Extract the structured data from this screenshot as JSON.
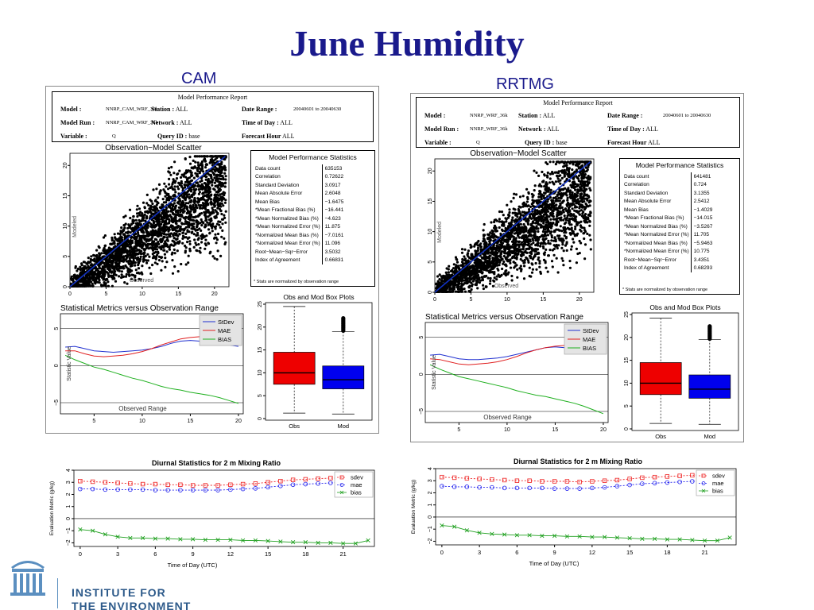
{
  "slide": {
    "title": "June Humidity",
    "left_label": "CAM",
    "right_label": "RRTMG",
    "institute_line1": "INSTITUTE FOR",
    "institute_line2": "THE ENVIRONMENT"
  },
  "reports": [
    {
      "title": "Model Performance Report",
      "model_key": "Model :",
      "model_val": "NNRP_CAM_WRF_36k",
      "run_key": "Model Run :",
      "run_val": "NNRP_CAM_WRF_36k",
      "variable_key": "Variable :",
      "variable_val": "Q",
      "station_key": "Station :",
      "station_val": "ALL",
      "network_key": "Network :",
      "network_val": "ALL",
      "query_key": "Query ID :",
      "query_val": "base",
      "date_key": "Date Range :",
      "date_val": "20040601  to  20040630",
      "tod_key": "Time of Day :",
      "tod_val": "ALL",
      "fh_key": "Forecast Hour",
      "fh_val": "ALL"
    },
    {
      "title": "Model Performance Report",
      "model_key": "Model :",
      "model_val": "NNRP_WRF_36k",
      "run_key": "Model Run :",
      "run_val": "NNRP_WRF_36k",
      "variable_key": "Variable :",
      "variable_val": "Q",
      "station_key": "Station :",
      "station_val": "ALL",
      "network_key": "Network :",
      "network_val": "ALL",
      "query_key": "Query ID :",
      "query_val": "base",
      "date_key": "Date Range :",
      "date_val": "20040601  to  20040630",
      "tod_key": "Time of Day :",
      "tod_val": "ALL",
      "fh_key": "Forecast Hour",
      "fh_val": "ALL"
    }
  ],
  "stats_tables": [
    {
      "title": "Model Performance Statistics",
      "rows": [
        [
          "Data count",
          "635153"
        ],
        [
          "Correlation",
          "0.72622"
        ],
        [
          "Standard Deviation",
          "3.0917"
        ],
        [
          "Mean Absolute Error",
          "2.6048"
        ],
        [
          "Mean Bias",
          "−1.6475"
        ],
        [
          "*Mean Fractional Bias (%)",
          "−16.441"
        ],
        [
          "*Mean Normalized Bias (%)",
          "−4.623"
        ],
        [
          "*Mean Normalized Error (%)",
          "11.875"
        ],
        [
          "*Normalized Mean Bias (%)",
          "−7.0161"
        ],
        [
          "*Normalized Mean Error (%)",
          "11.096"
        ],
        [
          "Root−Mean−Sqr−Error",
          "3.5032"
        ],
        [
          "Index of Agreement",
          "0.66831"
        ]
      ],
      "note": "* Stats are normalized by observation range"
    },
    {
      "title": "Model Performance Statistics",
      "rows": [
        [
          "Data count",
          "641481"
        ],
        [
          "Correlation",
          "0.724"
        ],
        [
          "Standard Deviation",
          "3.1355"
        ],
        [
          "Mean Absolute Error",
          "2.5412"
        ],
        [
          "Mean Bias",
          "−1.4029"
        ],
        [
          "*Mean Fractional Bias (%)",
          "−14.015"
        ],
        [
          "*Mean Normalized Bias (%)",
          "−3.5267"
        ],
        [
          "*Mean Normalized Error (%)",
          "11.705"
        ],
        [
          "*Normalized Mean Bias (%)",
          "−5.9463"
        ],
        [
          "*Normalized Mean Error (%)",
          "10.775"
        ],
        [
          "Root−Mean−Sqr−Error",
          "3.4351"
        ],
        [
          "Index of Agreement",
          "0.68293"
        ]
      ],
      "note": "* Stats are normalized by observation range"
    }
  ],
  "chart_data": [
    {
      "id": "cam-scatter",
      "type": "scatter",
      "title": "Observation−Model Scatter",
      "xlabel": "Observed",
      "ylabel": "Modeled",
      "xlim": [
        0,
        22
      ],
      "ylim": [
        0,
        22
      ],
      "x_ticks": [
        "0",
        "5",
        "10",
        "15",
        "20"
      ],
      "y_ticks": [
        "0",
        "5",
        "10",
        "15",
        "20"
      ],
      "one_to_one_line": true,
      "point_color": "#000000",
      "line_color": "#1030c0"
    },
    {
      "id": "rrtmg-scatter",
      "type": "scatter",
      "title": "Observation−Model Scatter",
      "xlabel": "Observed",
      "ylabel": "Modeled",
      "xlim": [
        0,
        22
      ],
      "ylim": [
        0,
        22
      ],
      "x_ticks": [
        "0",
        "5",
        "10",
        "15",
        "20"
      ],
      "y_ticks": [
        "0",
        "5",
        "10",
        "15",
        "20"
      ],
      "one_to_one_line": true,
      "point_color": "#000000",
      "line_color": "#1030c0"
    },
    {
      "id": "cam-metrics",
      "type": "line",
      "title": "Statistical Metrics versus Observation Range",
      "xlabel": "Observed Range",
      "ylabel": "Statistic Value",
      "xlim": [
        1.5,
        20.5
      ],
      "ylim": [
        -6.5,
        7
      ],
      "x_ticks": [
        "5",
        "10",
        "15",
        "20"
      ],
      "y_ticks": [
        "−5",
        "0",
        "5"
      ],
      "x": [
        2,
        3,
        4,
        5,
        6,
        7,
        8,
        9,
        10,
        11,
        12,
        13,
        14,
        15,
        16,
        17,
        18,
        19,
        20
      ],
      "series": [
        {
          "name": "StDev",
          "color": "#2030d0",
          "values": [
            2.5,
            2.6,
            2.3,
            2.0,
            1.9,
            1.8,
            1.9,
            2.0,
            2.1,
            2.3,
            2.6,
            3.0,
            3.3,
            3.4,
            3.3,
            3.2,
            3.0,
            2.8,
            2.6
          ]
        },
        {
          "name": "MAE",
          "color": "#e02020",
          "values": [
            2.0,
            2.0,
            1.6,
            1.3,
            1.2,
            1.3,
            1.4,
            1.6,
            1.9,
            2.3,
            2.8,
            3.2,
            3.6,
            3.8,
            3.9,
            4.0,
            4.2,
            4.3,
            4.4
          ]
        },
        {
          "name": "BIAS",
          "color": "#20b020",
          "values": [
            1.4,
            0.8,
            0.3,
            -0.2,
            -0.5,
            -0.9,
            -1.3,
            -1.7,
            -2.0,
            -2.4,
            -2.8,
            -3.1,
            -3.3,
            -3.6,
            -3.8,
            -4.0,
            -4.3,
            -4.7,
            -5.1
          ]
        }
      ],
      "legend_position": "top-right"
    },
    {
      "id": "rrtmg-metrics",
      "type": "line",
      "title": "Statistical Metrics versus Observation Range",
      "xlabel": "Observed Range",
      "ylabel": "Statistic Value",
      "xlim": [
        1.5,
        20.5
      ],
      "ylim": [
        -6.5,
        7
      ],
      "x_ticks": [
        "5",
        "10",
        "15",
        "20"
      ],
      "y_ticks": [
        "−5",
        "0",
        "5"
      ],
      "x": [
        2,
        3,
        4,
        5,
        6,
        7,
        8,
        9,
        10,
        11,
        12,
        13,
        14,
        15,
        16,
        17,
        18,
        19,
        20
      ],
      "series": [
        {
          "name": "StDev",
          "color": "#2030d0",
          "values": [
            2.6,
            2.7,
            2.4,
            2.1,
            2.0,
            2.0,
            2.1,
            2.2,
            2.4,
            2.7,
            3.0,
            3.3,
            3.6,
            3.7,
            3.6,
            3.4,
            3.2,
            3.0,
            2.8
          ]
        },
        {
          "name": "MAE",
          "color": "#e02020",
          "values": [
            2.1,
            2.0,
            1.7,
            1.4,
            1.3,
            1.4,
            1.5,
            1.7,
            2.0,
            2.4,
            2.9,
            3.3,
            3.6,
            3.8,
            3.9,
            4.1,
            4.3,
            4.5,
            4.6
          ]
        },
        {
          "name": "BIAS",
          "color": "#20b020",
          "values": [
            1.3,
            0.7,
            0.2,
            -0.3,
            -0.6,
            -0.9,
            -1.2,
            -1.5,
            -1.8,
            -2.2,
            -2.5,
            -2.8,
            -3.0,
            -3.3,
            -3.6,
            -3.9,
            -4.3,
            -4.8,
            -5.3
          ]
        }
      ],
      "legend_position": "top-right"
    },
    {
      "id": "cam-box",
      "type": "box",
      "title": "Obs and Mod Box Plots",
      "categories": [
        "Obs",
        "Mod"
      ],
      "ylim": [
        0,
        25
      ],
      "y_ticks": [
        "0",
        "5",
        "10",
        "15",
        "20",
        "25"
      ],
      "boxes": [
        {
          "name": "Obs",
          "color": "#ee0000",
          "min": 1.2,
          "q1": 7.5,
          "median": 10.0,
          "q3": 14.5,
          "max": 24.5
        },
        {
          "name": "Mod",
          "color": "#0000ee",
          "min": 1.0,
          "q1": 6.5,
          "median": 8.5,
          "q3": 11.5,
          "max": 19.0,
          "outliers_to": 22.0
        }
      ]
    },
    {
      "id": "rrtmg-box",
      "type": "box",
      "title": "Obs and Mod Box Plots",
      "categories": [
        "Obs",
        "Mod"
      ],
      "ylim": [
        0,
        25
      ],
      "y_ticks": [
        "0",
        "5",
        "10",
        "15",
        "20",
        "25"
      ],
      "boxes": [
        {
          "name": "Obs",
          "color": "#ee0000",
          "min": 1.2,
          "q1": 7.5,
          "median": 10.0,
          "q3": 14.5,
          "max": 24.2
        },
        {
          "name": "Mod",
          "color": "#0000ee",
          "min": 1.0,
          "q1": 6.7,
          "median": 8.7,
          "q3": 11.8,
          "max": 19.5,
          "outliers_to": 22.5
        }
      ]
    },
    {
      "id": "cam-diurnal",
      "type": "line",
      "title": "Diurnal Statistics for 2 m Mixing Ratio",
      "xlabel": "Time of Day (UTC)",
      "ylabel": "Evaluation Metric (g/kg)",
      "xlim": [
        -0.5,
        23.5
      ],
      "ylim": [
        -2.3,
        4
      ],
      "x_ticks": [
        "0",
        "3",
        "6",
        "9",
        "12",
        "15",
        "18",
        "21"
      ],
      "y_ticks": [
        "−2",
        "−1",
        "0",
        "1",
        "2",
        "3",
        "4"
      ],
      "x": [
        0,
        1,
        2,
        3,
        4,
        5,
        6,
        7,
        8,
        9,
        10,
        11,
        12,
        13,
        14,
        15,
        16,
        17,
        18,
        19,
        20,
        21,
        22,
        23
      ],
      "series": [
        {
          "name": "sdev",
          "color": "#ee2020",
          "values": [
            3.1,
            3.05,
            3.0,
            2.95,
            2.9,
            2.85,
            2.85,
            2.8,
            2.8,
            2.75,
            2.75,
            2.75,
            2.8,
            2.85,
            2.9,
            3.0,
            3.1,
            3.2,
            3.25,
            3.3,
            3.35,
            3.35,
            3.4,
            3.4
          ]
        },
        {
          "name": "mae",
          "color": "#2020ee",
          "values": [
            2.45,
            2.45,
            2.4,
            2.4,
            2.4,
            2.4,
            2.35,
            2.35,
            2.35,
            2.35,
            2.35,
            2.35,
            2.4,
            2.45,
            2.5,
            2.6,
            2.7,
            2.8,
            2.85,
            2.9,
            2.95,
            3.0,
            3.0,
            3.0
          ]
        },
        {
          "name": "bias",
          "color": "#20a020",
          "values": [
            -0.9,
            -1.0,
            -1.3,
            -1.5,
            -1.6,
            -1.6,
            -1.65,
            -1.65,
            -1.7,
            -1.7,
            -1.75,
            -1.75,
            -1.75,
            -1.8,
            -1.8,
            -1.85,
            -1.9,
            -1.95,
            -1.95,
            -2.0,
            -2.0,
            -2.05,
            -2.05,
            -1.8
          ]
        }
      ],
      "legend_position": "top-right"
    },
    {
      "id": "rrtmg-diurnal",
      "type": "line",
      "title": "Diurnal Statistics for 2 m Mixing Ratio",
      "xlabel": "Time of Day (UTC)",
      "ylabel": "Evaluation Metric (g/kg)",
      "xlim": [
        -0.5,
        23.5
      ],
      "ylim": [
        -2.3,
        4
      ],
      "x_ticks": [
        "0",
        "3",
        "6",
        "9",
        "12",
        "15",
        "18",
        "21"
      ],
      "y_ticks": [
        "−2",
        "−1",
        "0",
        "1",
        "2",
        "3",
        "4"
      ],
      "x": [
        0,
        1,
        2,
        3,
        4,
        5,
        6,
        7,
        8,
        9,
        10,
        11,
        12,
        13,
        14,
        15,
        16,
        17,
        18,
        19,
        20,
        21,
        22,
        23
      ],
      "series": [
        {
          "name": "sdev",
          "color": "#ee2020",
          "values": [
            3.3,
            3.25,
            3.2,
            3.15,
            3.1,
            3.05,
            3.0,
            3.0,
            2.95,
            2.95,
            2.95,
            2.9,
            2.95,
            3.0,
            3.05,
            3.15,
            3.25,
            3.3,
            3.35,
            3.4,
            3.45,
            3.5,
            3.5,
            3.55
          ]
        },
        {
          "name": "mae",
          "color": "#2020ee",
          "values": [
            2.55,
            2.5,
            2.5,
            2.45,
            2.45,
            2.4,
            2.4,
            2.4,
            2.4,
            2.35,
            2.35,
            2.35,
            2.4,
            2.45,
            2.55,
            2.65,
            2.75,
            2.8,
            2.85,
            2.9,
            2.95,
            3.0,
            3.0,
            3.05
          ]
        },
        {
          "name": "bias",
          "color": "#20a020",
          "values": [
            -0.7,
            -0.8,
            -1.1,
            -1.3,
            -1.4,
            -1.45,
            -1.5,
            -1.5,
            -1.55,
            -1.55,
            -1.6,
            -1.6,
            -1.65,
            -1.65,
            -1.7,
            -1.75,
            -1.8,
            -1.8,
            -1.85,
            -1.85,
            -1.9,
            -1.95,
            -1.95,
            -1.7
          ]
        }
      ],
      "legend_position": "top-right"
    }
  ]
}
